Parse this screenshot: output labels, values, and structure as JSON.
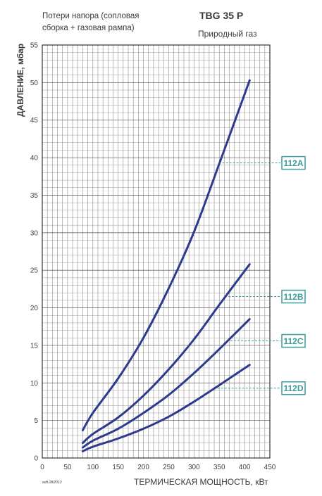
{
  "chart_data": {
    "type": "line",
    "title": "TBG 35 P",
    "subtitle": "Природный газ",
    "note": "Потери напора (сопловая сборка + газовая рампа)",
    "note_lines": [
      "Потери напора (сопловая",
      "сборка + газовая рампа)"
    ],
    "xlabel": "ТЕРМИЧЕСКАЯ МОЩНОСТЬ, кВт",
    "ylabel": "ДАВЛЕНИЕ, мбар",
    "edition": "edit.08/2013",
    "xlim": [
      0,
      450
    ],
    "ylim": [
      0,
      55
    ],
    "x_ticks": [
      0,
      50,
      100,
      150,
      200,
      250,
      300,
      350,
      400,
      450
    ],
    "y_ticks": [
      0,
      5,
      10,
      15,
      20,
      25,
      30,
      35,
      40,
      45,
      50,
      55
    ],
    "grid": true,
    "series_color": "#2e3a8c",
    "label_color": "#3a9e9a",
    "series": [
      {
        "name": "112A",
        "label_y": 39.3,
        "x": [
          80,
          100,
          150,
          200,
          250,
          300,
          350,
          410
        ],
        "y": [
          3.7,
          6.0,
          10.6,
          16.0,
          22.6,
          30.1,
          39.2,
          50.3
        ]
      },
      {
        "name": "112B",
        "label_y": 21.5,
        "x": [
          80,
          100,
          150,
          200,
          250,
          300,
          350,
          410
        ],
        "y": [
          2.0,
          3.2,
          5.4,
          8.3,
          11.8,
          15.8,
          20.4,
          25.8
        ]
      },
      {
        "name": "112C",
        "label_y": 15.6,
        "x": [
          80,
          100,
          150,
          200,
          250,
          300,
          350,
          410
        ],
        "y": [
          1.4,
          2.3,
          3.9,
          6.0,
          8.4,
          11.3,
          14.5,
          18.5
        ]
      },
      {
        "name": "112D",
        "label_y": 9.3,
        "x": [
          80,
          100,
          150,
          200,
          250,
          300,
          350,
          410
        ],
        "y": [
          0.9,
          1.5,
          2.6,
          3.9,
          5.5,
          7.5,
          9.7,
          12.4
        ]
      }
    ]
  }
}
